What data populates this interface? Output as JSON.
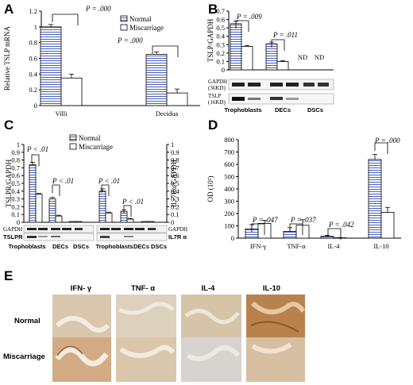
{
  "colors": {
    "normal_fill": "#ffffff",
    "normal_stripe": "#4a5fb8",
    "miscarriage_fill": "#ffffff",
    "axis": "#000000"
  },
  "legend": {
    "normal": "Normal",
    "miscarriage": "Miscarriage"
  },
  "chart_data": [
    {
      "panel": "A",
      "type": "bar",
      "ylabel": "Relative TSLP mRNA",
      "ylim": [
        0,
        1.2
      ],
      "yticks": [
        "0",
        "0.2",
        "0.4",
        "0.6",
        "0.8",
        "1",
        "1.2"
      ],
      "categories": [
        "Villi",
        "Decidua"
      ],
      "series": [
        {
          "name": "Normal",
          "values": [
            1.0,
            0.65
          ],
          "errors": [
            0.03,
            0.03
          ]
        },
        {
          "name": "Miscarriage",
          "values": [
            0.35,
            0.16
          ],
          "errors": [
            0.05,
            0.05
          ]
        }
      ],
      "annotations": [
        "P = .000",
        "P = .000"
      ]
    },
    {
      "panel": "B",
      "type": "bar",
      "ylabel": "TSLP/GAPDH",
      "ylim": [
        0,
        0.7
      ],
      "yticks": [
        "0",
        "0.1",
        "0.2",
        "0.3",
        "0.4",
        "0.5",
        "0.6",
        "0.7"
      ],
      "categories": [
        "Trophoblasts",
        "DECs",
        "DSCs"
      ],
      "series": [
        {
          "name": "Normal",
          "values": [
            0.55,
            0.31,
            0
          ],
          "errors": [
            0.03,
            0.02,
            0
          ]
        },
        {
          "name": "Miscarriage",
          "values": [
            0.28,
            0.1,
            0
          ],
          "errors": [
            0.01,
            0.01,
            0
          ]
        }
      ],
      "annotations": [
        "P = .009",
        "P = .011",
        "ND",
        "ND"
      ],
      "blot_labels": [
        "GAPDH",
        "(36KD)",
        "TSLP",
        "(16KD)"
      ]
    },
    {
      "panel": "C",
      "type": "bar",
      "ylabel": "TSLPR/GAPDH",
      "ylabel_right": "IL-7Rα/GAPDH",
      "ylim": [
        0,
        1
      ],
      "yticks": [
        "0",
        "0.1",
        "0.2",
        "0.3",
        "0.4",
        "0.5",
        "0.6",
        "0.7",
        "0.8",
        "0.9",
        "1"
      ],
      "categories": [
        "Trophoblasts",
        "DECs",
        "DSCs",
        "Trophoblasts",
        "DECs",
        "DSCs"
      ],
      "series": [
        {
          "name": "Normal",
          "values": [
            0.74,
            0.3,
            0.01,
            0.4,
            0.14,
            0.01
          ],
          "errors": [
            0.03,
            0.02,
            0,
            0.03,
            0.02,
            0
          ]
        },
        {
          "name": "Miscarriage",
          "values": [
            0.36,
            0.08,
            0.01,
            0.12,
            0.04,
            0.01
          ],
          "errors": [
            0.01,
            0.01,
            0,
            0.01,
            0.01,
            0
          ]
        }
      ],
      "annotations": [
        "P < .01",
        "P < .01",
        "P < .01",
        "P < .01"
      ],
      "blot_labels": [
        "GAPDH",
        "TSLPR",
        "GAPDH",
        "IL7R α"
      ]
    },
    {
      "panel": "D",
      "type": "bar",
      "ylabel": "OD (10³)",
      "ylim": [
        0,
        800
      ],
      "yticks": [
        "0",
        "100",
        "200",
        "300",
        "400",
        "500",
        "600",
        "700",
        "800"
      ],
      "categories": [
        "IFN-γ",
        "TNF-α",
        "IL-4",
        "IL-10"
      ],
      "series": [
        {
          "name": "Normal",
          "values": [
            75,
            55,
            15,
            640
          ],
          "errors": [
            35,
            30,
            8,
            40
          ]
        },
        {
          "name": "Miscarriage",
          "values": [
            120,
            105,
            3,
            210
          ],
          "errors": [
            25,
            45,
            2,
            40
          ]
        }
      ],
      "annotations": [
        "P = .047",
        "P = .037",
        "P = .042",
        "P = .000"
      ]
    }
  ],
  "panel_labels": [
    "A",
    "B",
    "C",
    "D",
    "E"
  ],
  "ihc": {
    "columns": [
      "IFN- γ",
      "TNF- α",
      "IL-4",
      "IL-10"
    ],
    "rows": [
      "Normal",
      "Miscarriage"
    ]
  }
}
